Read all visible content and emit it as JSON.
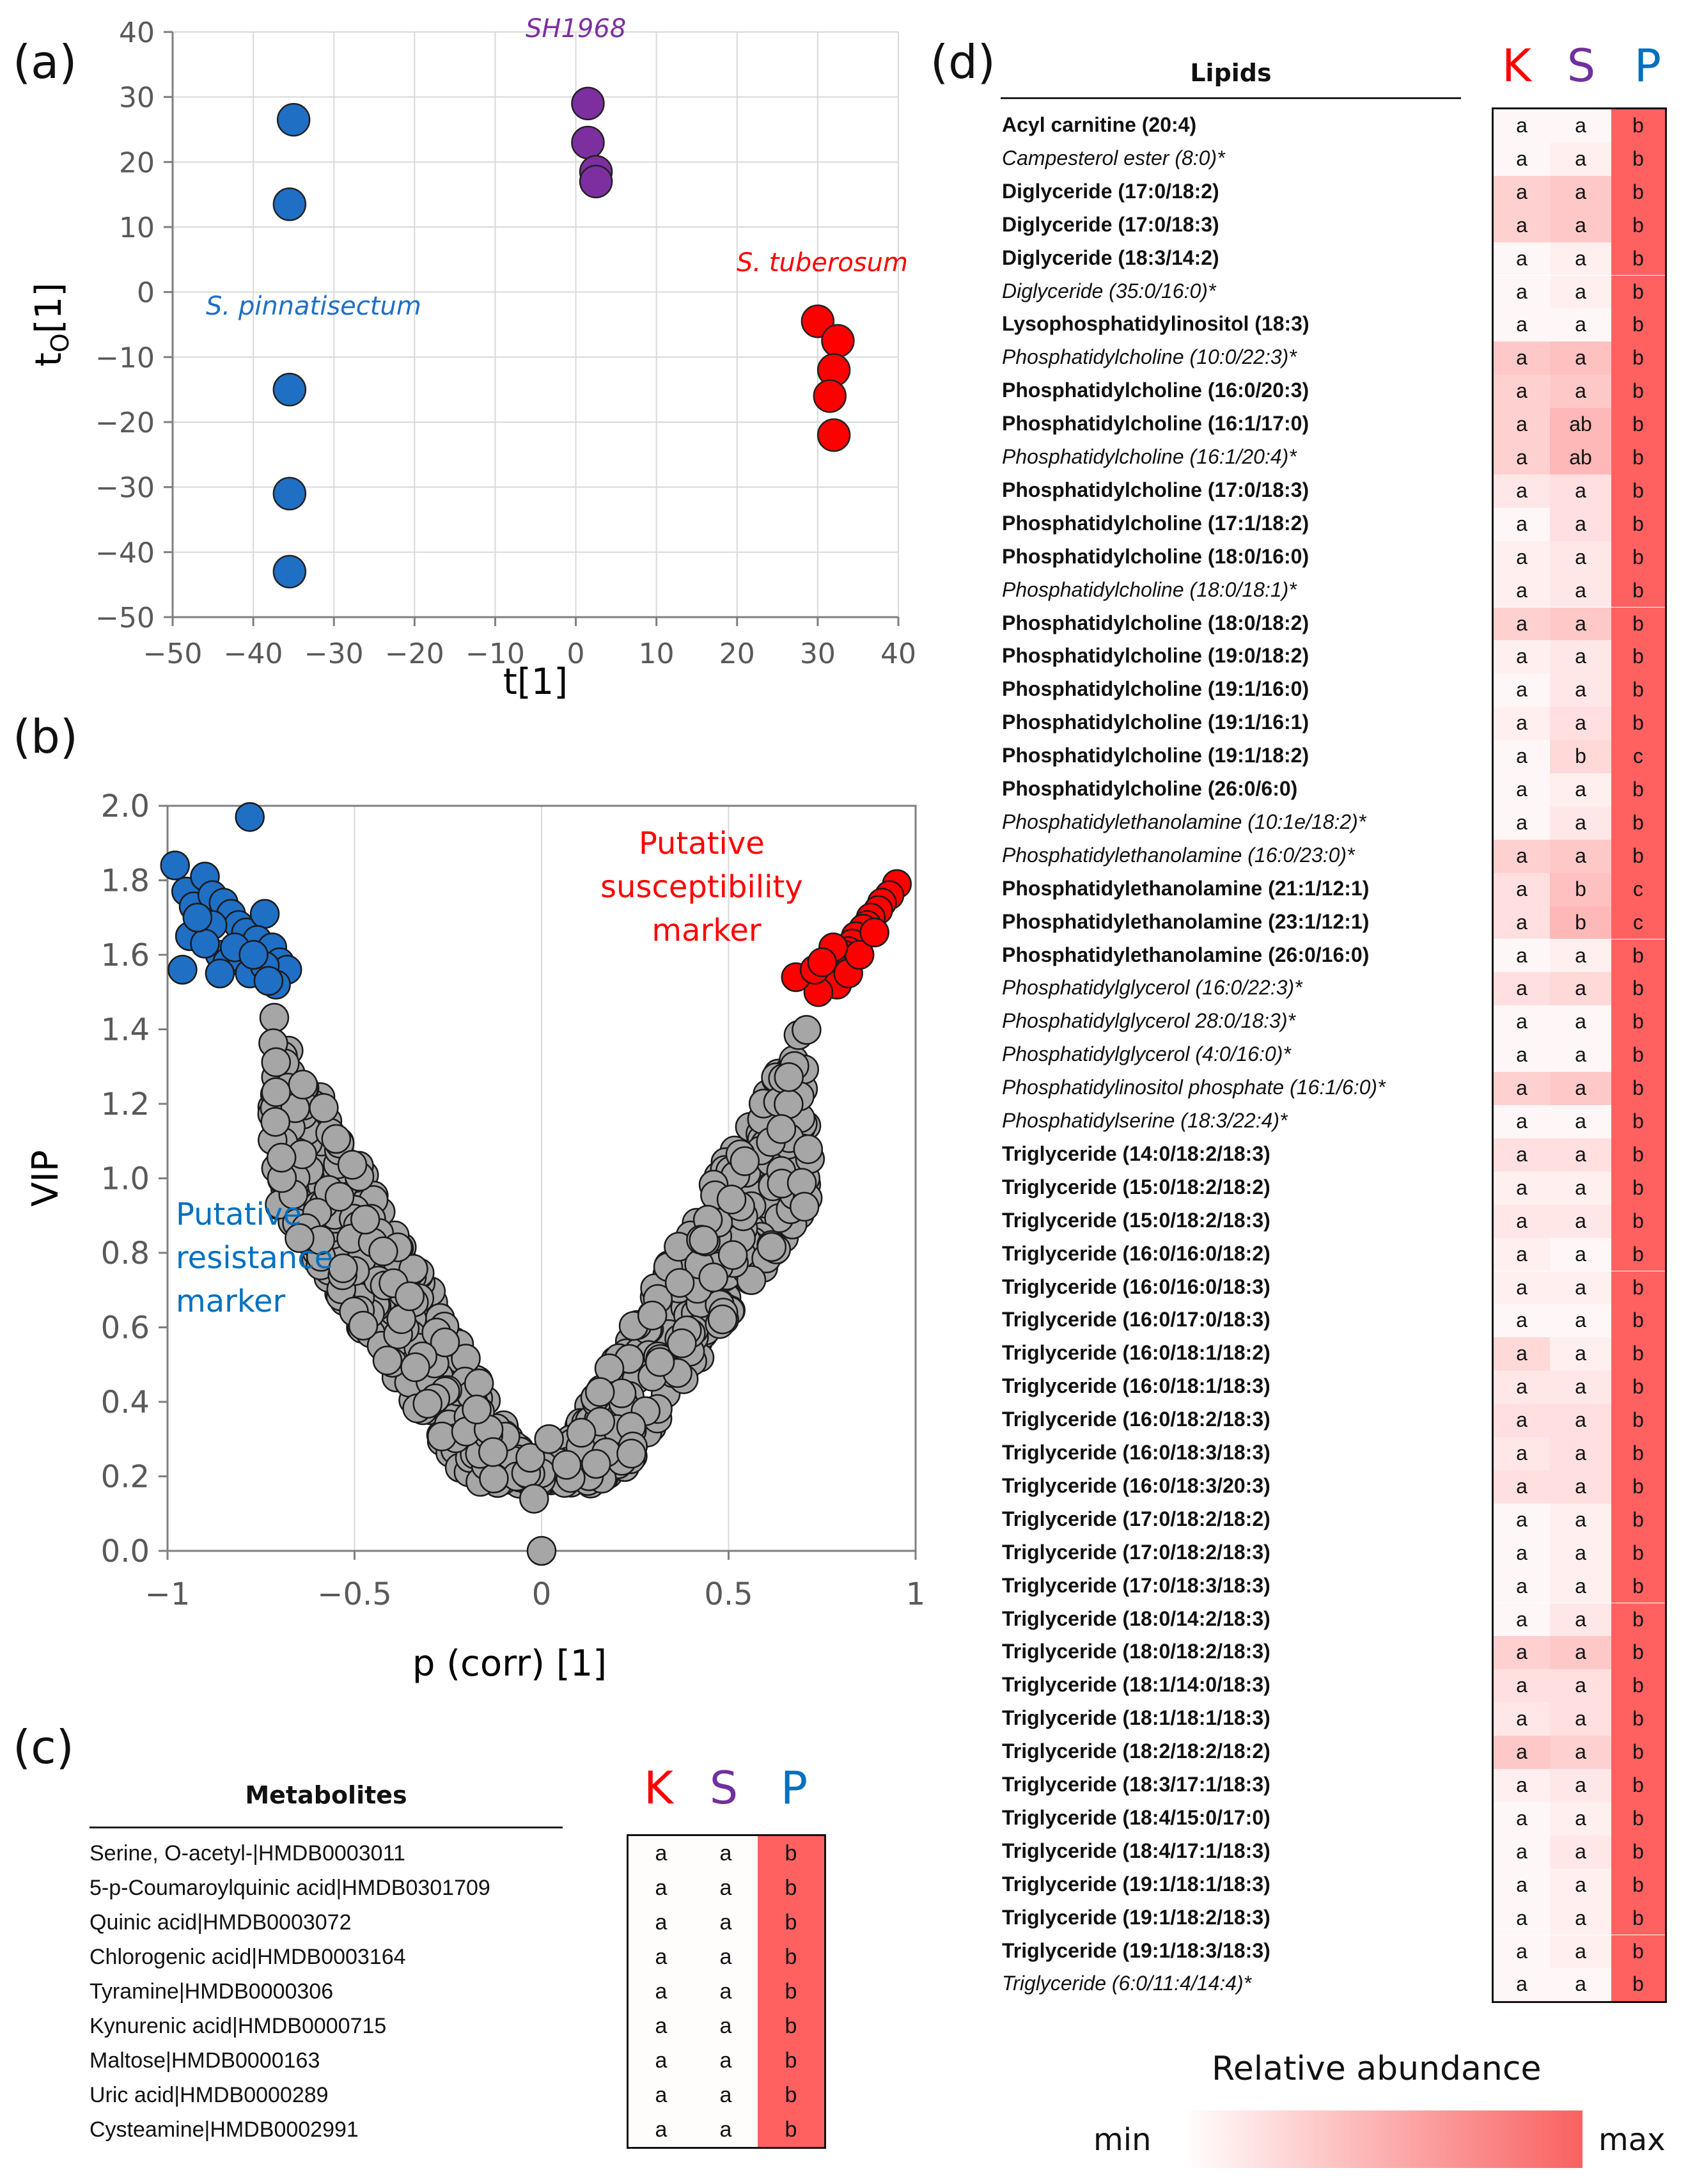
{
  "panel_labels": {
    "a": "(a)",
    "b": "(b)",
    "c": "(c)",
    "d": "(d)"
  },
  "colors": {
    "K": "#ff0000",
    "S": "#7030a0",
    "P": "#0070c0",
    "blue": "#1f6fc5",
    "purple": "#7d2fa0",
    "red": "#ff0000",
    "grey": "#a6a6a6",
    "max": "#f96161"
  },
  "chart_data": [
    {
      "type": "scatter",
      "panel": "a",
      "title": "",
      "xlabel": "t[1]",
      "ylabel_main": "t",
      "ylabel_sub": "O",
      "ylabel_tail": "[1]",
      "xlim": [
        -50,
        40
      ],
      "ylim": [
        -50,
        40
      ],
      "xticks": [
        "−50",
        "−40",
        "−30",
        "−20",
        "−10",
        "0",
        "10",
        "20",
        "30",
        "40"
      ],
      "yticks": [
        "40",
        "30",
        "20",
        "10",
        "0",
        "−10",
        "−20",
        "−30",
        "−40",
        "−50"
      ],
      "grid": true,
      "series": [
        {
          "name": "S. pinnatisectum",
          "color": "#1f6fc5",
          "points": [
            [
              -35,
              26.5
            ],
            [
              -35.5,
              13.5
            ],
            [
              -35.5,
              -15
            ],
            [
              -35.5,
              -31
            ],
            [
              -35.5,
              -43
            ]
          ]
        },
        {
          "name": "SH1968",
          "color": "#7d2fa0",
          "points": [
            [
              1.5,
              29
            ],
            [
              1.5,
              23
            ],
            [
              2.5,
              18.5
            ],
            [
              2.5,
              17
            ]
          ]
        },
        {
          "name": "S. tuberosum",
          "color": "#ff0000",
          "points": [
            [
              30,
              -4.5
            ],
            [
              32.5,
              -7.5
            ],
            [
              32,
              -12
            ],
            [
              31.5,
              -16
            ],
            [
              32,
              -22
            ]
          ]
        }
      ]
    },
    {
      "type": "scatter",
      "panel": "b",
      "title": "",
      "xlabel": "p (corr) [1]",
      "ylabel": "VIP",
      "xlim": [
        -1,
        1
      ],
      "ylim": [
        0,
        2
      ],
      "xticks": [
        "−1",
        "−0.5",
        "0",
        "0.5",
        "1"
      ],
      "yticks": [
        "2.0",
        "1.8",
        "1.6",
        "1.4",
        "1.2",
        "1.0",
        "0.8",
        "0.6",
        "0.4",
        "0.2",
        "0.0"
      ],
      "grid": true,
      "annotations": {
        "resistance": [
          "Putative",
          "resistance",
          "marker"
        ],
        "susceptibility": [
          "Putative",
          "susceptibility",
          "marker"
        ]
      },
      "series": [
        {
          "name": "Putative resistance marker",
          "color": "#1f6fc5",
          "points": [
            [
              -0.78,
              1.97
            ],
            [
              -0.98,
              1.84
            ],
            [
              -0.95,
              1.77
            ],
            [
              -0.9,
              1.81
            ],
            [
              -0.93,
              1.73
            ],
            [
              -0.96,
              1.56
            ],
            [
              -0.94,
              1.65
            ],
            [
              -0.88,
              1.76
            ],
            [
              -0.85,
              1.74
            ],
            [
              -0.83,
              1.71
            ],
            [
              -0.81,
              1.68
            ],
            [
              -0.79,
              1.66
            ],
            [
              -0.74,
              1.71
            ],
            [
              -0.76,
              1.64
            ],
            [
              -0.72,
              1.62
            ],
            [
              -0.7,
              1.58
            ],
            [
              -0.68,
              1.56
            ],
            [
              -0.86,
              1.6
            ],
            [
              -0.84,
              1.58
            ],
            [
              -0.8,
              1.59
            ],
            [
              -0.78,
              1.55
            ],
            [
              -0.74,
              1.57
            ],
            [
              -0.71,
              1.52
            ],
            [
              -0.88,
              1.68
            ],
            [
              -0.9,
              1.63
            ],
            [
              -0.86,
              1.55
            ],
            [
              -0.82,
              1.62
            ],
            [
              -0.77,
              1.6
            ],
            [
              -0.73,
              1.53
            ],
            [
              -0.92,
              1.7
            ]
          ]
        },
        {
          "name": "Putative susceptibility marker",
          "color": "#ff0000",
          "points": [
            [
              0.95,
              1.79
            ],
            [
              0.93,
              1.76
            ],
            [
              0.91,
              1.74
            ],
            [
              0.9,
              1.72
            ],
            [
              0.88,
              1.7
            ],
            [
              0.87,
              1.68
            ],
            [
              0.86,
              1.67
            ],
            [
              0.84,
              1.65
            ],
            [
              0.83,
              1.63
            ],
            [
              0.82,
              1.61
            ],
            [
              0.81,
              1.6
            ],
            [
              0.8,
              1.58
            ],
            [
              0.78,
              1.57
            ],
            [
              0.77,
              1.55
            ],
            [
              0.76,
              1.53
            ],
            [
              0.79,
              1.52
            ],
            [
              0.74,
              1.5
            ],
            [
              0.68,
              1.54
            ],
            [
              0.73,
              1.56
            ],
            [
              0.82,
              1.55
            ],
            [
              0.85,
              1.6
            ],
            [
              0.89,
              1.66
            ],
            [
              0.78,
              1.62
            ],
            [
              0.75,
              1.58
            ]
          ]
        }
      ]
    }
  ],
  "metabolites": {
    "title": "Metabolites",
    "headers": [
      "K",
      "S",
      "P"
    ],
    "rows": [
      {
        "label": "Serine, O-acetyl-|HMDB0003011",
        "k": "a",
        "s": "a",
        "p": "b"
      },
      {
        "label": "5-p-Coumaroylquinic acid|HMDB0301709",
        "k": "a",
        "s": "a",
        "p": "b"
      },
      {
        "label": "Quinic acid|HMDB0003072",
        "k": "a",
        "s": "a",
        "p": "b"
      },
      {
        "label": "Chlorogenic acid|HMDB0003164",
        "k": "a",
        "s": "a",
        "p": "b"
      },
      {
        "label": "Tyramine|HMDB0000306",
        "k": "a",
        "s": "a",
        "p": "b"
      },
      {
        "label": "Kynurenic acid|HMDB0000715",
        "k": "a",
        "s": "a",
        "p": "b"
      },
      {
        "label": "Maltose|HMDB0000163",
        "k": "a",
        "s": "a",
        "p": "b"
      },
      {
        "label": "Uric acid|HMDB0000289",
        "k": "a",
        "s": "a",
        "p": "b"
      },
      {
        "label": "Cysteamine|HMDB0002991",
        "k": "a",
        "s": "a",
        "p": "b"
      }
    ]
  },
  "lipids": {
    "title": "Lipids",
    "headers": [
      "K",
      "S",
      "P"
    ],
    "rows": [
      {
        "label": "Acyl carnitine (20:4)",
        "style": "b",
        "k": "a",
        "s": "a",
        "p": "b",
        "ki": 0.05,
        "si": 0.05
      },
      {
        "label": "Campesterol ester (8:0)*",
        "style": "i",
        "k": "a",
        "s": "a",
        "p": "b",
        "ki": 0.05,
        "si": 0.1
      },
      {
        "label": "Diglyceride (17:0/18:2)",
        "style": "b",
        "k": "a",
        "s": "a",
        "p": "b",
        "ki": 0.3,
        "si": 0.35
      },
      {
        "label": "Diglyceride (17:0/18:3)",
        "style": "b",
        "k": "a",
        "s": "a",
        "p": "b",
        "ki": 0.3,
        "si": 0.35
      },
      {
        "label": "Diglyceride (18:3/14:2)",
        "style": "b",
        "k": "a",
        "s": "a",
        "p": "b",
        "ki": 0.05,
        "si": 0.1
      },
      {
        "label": "Diglyceride (35:0/16:0)*",
        "style": "i",
        "k": "a",
        "s": "a",
        "p": "b",
        "ki": 0.05,
        "si": 0.1
      },
      {
        "label": "Lysophosphatidylinositol (18:3)",
        "style": "b",
        "k": "a",
        "s": "a",
        "p": "b",
        "ki": 0.05,
        "si": 0.05
      },
      {
        "label": "Phosphatidylcholine (10:0/22:3)*",
        "style": "i",
        "k": "a",
        "s": "a",
        "p": "b",
        "ki": 0.35,
        "si": 0.4
      },
      {
        "label": "Phosphatidylcholine (16:0/20:3)",
        "style": "b",
        "k": "a",
        "s": "a",
        "p": "b",
        "ki": 0.3,
        "si": 0.35
      },
      {
        "label": "Phosphatidylcholine (16:1/17:0)",
        "style": "b",
        "k": "a",
        "s": "ab",
        "p": "b",
        "ki": 0.3,
        "si": 0.45
      },
      {
        "label": "Phosphatidylcholine (16:1/20:4)*",
        "style": "i",
        "k": "a",
        "s": "ab",
        "p": "b",
        "ki": 0.3,
        "si": 0.45
      },
      {
        "label": "Phosphatidylcholine (17:0/18:3)",
        "style": "b",
        "k": "a",
        "s": "a",
        "p": "b",
        "ki": 0.15,
        "si": 0.2
      },
      {
        "label": "Phosphatidylcholine (17:1/18:2)",
        "style": "b",
        "k": "a",
        "s": "a",
        "p": "b",
        "ki": 0.05,
        "si": 0.2
      },
      {
        "label": "Phosphatidylcholine (18:0/16:0)",
        "style": "b",
        "k": "a",
        "s": "a",
        "p": "b",
        "ki": 0.1,
        "si": 0.15
      },
      {
        "label": "Phosphatidylcholine (18:0/18:1)*",
        "style": "i",
        "k": "a",
        "s": "a",
        "p": "b",
        "ki": 0.1,
        "si": 0.15
      },
      {
        "label": "Phosphatidylcholine (18:0/18:2)",
        "style": "b",
        "k": "a",
        "s": "a",
        "p": "b",
        "ki": 0.3,
        "si": 0.35
      },
      {
        "label": "Phosphatidylcholine (19:0/18:2)",
        "style": "b",
        "k": "a",
        "s": "a",
        "p": "b",
        "ki": 0.1,
        "si": 0.15
      },
      {
        "label": "Phosphatidylcholine (19:1/16:0)",
        "style": "b",
        "k": "a",
        "s": "a",
        "p": "b",
        "ki": 0.05,
        "si": 0.15
      },
      {
        "label": "Phosphatidylcholine (19:1/16:1)",
        "style": "b",
        "k": "a",
        "s": "a",
        "p": "b",
        "ki": 0.1,
        "si": 0.2
      },
      {
        "label": "Phosphatidylcholine (19:1/18:2)",
        "style": "b",
        "k": "a",
        "s": "b",
        "p": "c",
        "ki": 0.05,
        "si": 0.25
      },
      {
        "label": "Phosphatidylcholine (26:0/6:0)",
        "style": "b",
        "k": "a",
        "s": "a",
        "p": "b",
        "ki": 0.05,
        "si": 0.1
      },
      {
        "label": "Phosphatidylethanolamine (10:1e/18:2)*",
        "style": "i",
        "k": "a",
        "s": "a",
        "p": "b",
        "ki": 0.05,
        "si": 0.15
      },
      {
        "label": "Phosphatidylethanolamine (16:0/23:0)*",
        "style": "i",
        "k": "a",
        "s": "a",
        "p": "b",
        "ki": 0.3,
        "si": 0.35
      },
      {
        "label": "Phosphatidylethanolamine (21:1/12:1)",
        "style": "b",
        "k": "a",
        "s": "b",
        "p": "c",
        "ki": 0.2,
        "si": 0.4
      },
      {
        "label": "Phosphatidylethanolamine (23:1/12:1)",
        "style": "b",
        "k": "a",
        "s": "b",
        "p": "c",
        "ki": 0.2,
        "si": 0.45
      },
      {
        "label": "Phosphatidylethanolamine (26:0/16:0)",
        "style": "b",
        "k": "a",
        "s": "a",
        "p": "b",
        "ki": 0.05,
        "si": 0.1
      },
      {
        "label": "Phosphatidylglycerol (16:0/22:3)*",
        "style": "i",
        "k": "a",
        "s": "a",
        "p": "b",
        "ki": 0.2,
        "si": 0.25
      },
      {
        "label": "Phosphatidylglycerol 28:0/18:3)*",
        "style": "i",
        "k": "a",
        "s": "a",
        "p": "b",
        "ki": 0.05,
        "si": 0.05
      },
      {
        "label": "Phosphatidylglycerol (4:0/16:0)*",
        "style": "i",
        "k": "a",
        "s": "a",
        "p": "b",
        "ki": 0.05,
        "si": 0.05
      },
      {
        "label": "Phosphatidylinositol phosphate (16:1/6:0)*",
        "style": "i",
        "k": "a",
        "s": "a",
        "p": "b",
        "ki": 0.3,
        "si": 0.35
      },
      {
        "label": "Phosphatidylserine (18:3/22:4)*",
        "style": "i",
        "k": "a",
        "s": "a",
        "p": "b",
        "ki": 0.05,
        "si": 0.05
      },
      {
        "label": "Triglyceride (14:0/18:2/18:3)",
        "style": "b",
        "k": "a",
        "s": "a",
        "p": "b",
        "ki": 0.2,
        "si": 0.2
      },
      {
        "label": "Triglyceride (15:0/18:2/18:2)",
        "style": "b",
        "k": "a",
        "s": "a",
        "p": "b",
        "ki": 0.1,
        "si": 0.1
      },
      {
        "label": "Triglyceride (15:0/18:2/18:3)",
        "style": "b",
        "k": "a",
        "s": "a",
        "p": "b",
        "ki": 0.15,
        "si": 0.15
      },
      {
        "label": "Triglyceride (16:0/16:0/18:2)",
        "style": "b",
        "k": "a",
        "s": "a",
        "p": "b",
        "ki": 0.1,
        "si": 0.05
      },
      {
        "label": "Triglyceride (16:0/16:0/18:3)",
        "style": "b",
        "k": "a",
        "s": "a",
        "p": "b",
        "ki": 0.1,
        "si": 0.1
      },
      {
        "label": "Triglyceride (16:0/17:0/18:3)",
        "style": "b",
        "k": "a",
        "s": "a",
        "p": "b",
        "ki": 0.05,
        "si": 0.05
      },
      {
        "label": "Triglyceride (16:0/18:1/18:2)",
        "style": "b",
        "k": "a",
        "s": "a",
        "p": "b",
        "ki": 0.25,
        "si": 0.1
      },
      {
        "label": "Triglyceride (16:0/18:1/18:3)",
        "style": "b",
        "k": "a",
        "s": "a",
        "p": "b",
        "ki": 0.15,
        "si": 0.15
      },
      {
        "label": "Triglyceride (16:0/18:2/18:3)",
        "style": "b",
        "k": "a",
        "s": "a",
        "p": "b",
        "ki": 0.2,
        "si": 0.2
      },
      {
        "label": "Triglyceride (16:0/18:3/18:3)",
        "style": "b",
        "k": "a",
        "s": "a",
        "p": "b",
        "ki": 0.15,
        "si": 0.2
      },
      {
        "label": "Triglyceride (16:0/18:3/20:3)",
        "style": "b",
        "k": "a",
        "s": "a",
        "p": "b",
        "ki": 0.2,
        "si": 0.2
      },
      {
        "label": "Triglyceride (17:0/18:2/18:2)",
        "style": "b",
        "k": "a",
        "s": "a",
        "p": "b",
        "ki": 0.05,
        "si": 0.1
      },
      {
        "label": "Triglyceride (17:0/18:2/18:3)",
        "style": "b",
        "k": "a",
        "s": "a",
        "p": "b",
        "ki": 0.05,
        "si": 0.1
      },
      {
        "label": "Triglyceride (17:0/18:3/18:3)",
        "style": "b",
        "k": "a",
        "s": "a",
        "p": "b",
        "ki": 0.05,
        "si": 0.1
      },
      {
        "label": "Triglyceride (18:0/14:2/18:3)",
        "style": "b",
        "k": "a",
        "s": "a",
        "p": "b",
        "ki": 0.05,
        "si": 0.15
      },
      {
        "label": "Triglyceride (18:0/18:2/18:3)",
        "style": "b",
        "k": "a",
        "s": "a",
        "p": "b",
        "ki": 0.3,
        "si": 0.35
      },
      {
        "label": "Triglyceride (18:1/14:0/18:3)",
        "style": "b",
        "k": "a",
        "s": "a",
        "p": "b",
        "ki": 0.2,
        "si": 0.2
      },
      {
        "label": "Triglyceride (18:1/18:1/18:3)",
        "style": "b",
        "k": "a",
        "s": "a",
        "p": "b",
        "ki": 0.15,
        "si": 0.2
      },
      {
        "label": "Triglyceride (18:2/18:2/18:2)",
        "style": "b",
        "k": "a",
        "s": "a",
        "p": "b",
        "ki": 0.35,
        "si": 0.3
      },
      {
        "label": "Triglyceride (18:3/17:1/18:3)",
        "style": "b",
        "k": "a",
        "s": "a",
        "p": "b",
        "ki": 0.1,
        "si": 0.15
      },
      {
        "label": "Triglyceride (18:4/15:0/17:0)",
        "style": "b",
        "k": "a",
        "s": "a",
        "p": "b",
        "ki": 0.05,
        "si": 0.1
      },
      {
        "label": "Triglyceride (18:4/17:1/18:3)",
        "style": "b",
        "k": "a",
        "s": "a",
        "p": "b",
        "ki": 0.05,
        "si": 0.15
      },
      {
        "label": "Triglyceride (19:1/18:1/18:3)",
        "style": "b",
        "k": "a",
        "s": "a",
        "p": "b",
        "ki": 0.05,
        "si": 0.1
      },
      {
        "label": "Triglyceride (19:1/18:2/18:3)",
        "style": "b",
        "k": "a",
        "s": "a",
        "p": "b",
        "ki": 0.05,
        "si": 0.1
      },
      {
        "label": "Triglyceride (19:1/18:3/18:3)",
        "style": "b",
        "k": "a",
        "s": "a",
        "p": "b",
        "ki": 0.05,
        "si": 0.1
      },
      {
        "label": "Triglyceride (6:0/11:4/14:4)*",
        "style": "i",
        "k": "a",
        "s": "a",
        "p": "b",
        "ki": 0.05,
        "si": 0.05
      }
    ]
  },
  "legend": {
    "title": "Relative abundance",
    "min": "min",
    "max": "max"
  }
}
